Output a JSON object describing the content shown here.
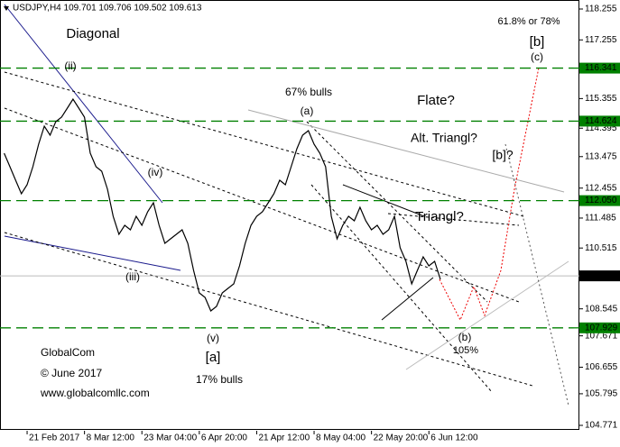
{
  "chart_data": {
    "type": "line",
    "title": "USDJPY,H4  109.701 109.706 109.502 109.613",
    "categories": [
      null,
      null,
      null,
      null,
      "21 Feb 2017",
      null,
      null,
      null,
      null,
      null,
      null,
      null,
      null,
      null,
      "8 Mar 12:00",
      null,
      null,
      null,
      null,
      null,
      null,
      null,
      null,
      null,
      "23 Mar 04:00",
      null,
      null,
      null,
      null,
      null,
      null,
      null,
      null,
      null,
      "6 Apr 20:00",
      null,
      null,
      null,
      null,
      null,
      null,
      null,
      null,
      null,
      "21 Apr 12:00",
      null,
      null,
      null,
      null,
      null,
      null,
      null,
      null,
      null,
      "8 May 04:00",
      null,
      null,
      null,
      null,
      null,
      null,
      null,
      null,
      null,
      "22 May 20:00",
      null,
      null,
      null,
      null,
      null,
      null,
      null,
      null,
      null,
      "6 Jun 12:00",
      null,
      null
    ],
    "values": [
      113.585,
      113.147,
      112.709,
      112.271,
      112.563,
      113.147,
      113.877,
      114.461,
      114.169,
      114.607,
      114.752,
      115.044,
      115.336,
      115.044,
      114.752,
      113.585,
      113.147,
      113.001,
      112.417,
      111.542,
      110.958,
      111.25,
      111.104,
      111.542,
      111.25,
      111.688,
      111.98,
      111.25,
      110.666,
      110.812,
      110.958,
      111.104,
      110.666,
      109.79,
      109.061,
      108.915,
      108.477,
      108.623,
      109.061,
      109.207,
      109.353,
      109.936,
      110.666,
      111.25,
      111.542,
      111.688,
      111.98,
      112.271,
      112.709,
      112.563,
      113.147,
      113.731,
      114.169,
      114.315,
      113.877,
      113.585,
      113.147,
      111.542,
      110.812,
      111.25,
      111.542,
      111.396,
      111.834,
      111.396,
      111.104,
      111.25,
      110.958,
      111.104,
      111.542,
      110.52,
      110.082,
      109.353,
      109.79,
      110.228,
      109.936,
      110.082,
      109.498
    ],
    "color": "#000000",
    "ylim": [
      104.596,
      118.547
    ],
    "yticks": [
      118.255,
      117.255,
      115.355,
      114.395,
      113.475,
      112.455,
      111.485,
      110.515,
      108.545,
      107.671,
      106.655,
      105.795,
      104.771
    ],
    "levels": [
      116.341,
      114.624,
      {
        "value": 112.05,
        "label": "112.050"
      },
      107.929
    ],
    "level_color": "#008000",
    "price_line": 109.613,
    "annotations": [
      {
        "text": "Diagonal",
        "color": "#1a1a8c"
      },
      {
        "text": "(ii)",
        "color": "#1a1a8c"
      },
      {
        "text": "(iv)",
        "color": "#1a1a8c"
      },
      {
        "text": "(iii)",
        "color": "#1a1a8c"
      },
      {
        "text": "(v)",
        "color": "#1a1a8c"
      },
      {
        "text": "[a]",
        "color": "#008000"
      },
      {
        "text": "17% bulls",
        "color": "#000000"
      },
      {
        "text": "GlobalCom",
        "color": "#000000"
      },
      {
        "text": "© June 2017",
        "color": "#000000"
      },
      {
        "text": "www.globalcomllc.com",
        "color": "#000000"
      },
      {
        "text": "67% bulls",
        "color": "#000000"
      },
      {
        "text": "(a)",
        "color": "#1a1a8c"
      },
      {
        "text": "Flate?",
        "color": "#1a1a8c"
      },
      {
        "text": "Alt. Triangl?",
        "color": "#999999"
      },
      {
        "text": "[b]?",
        "color": "#999999"
      },
      {
        "text": "Triangl?",
        "color": "#1a1a8c"
      },
      {
        "text": "(b)",
        "color": "#1a1a8c"
      },
      {
        "text": "105%",
        "color": "#1a1a8c"
      },
      {
        "text": "61.8% or 78%",
        "color": "#1a1a8c"
      },
      {
        "text": "[b]",
        "color": "#008000"
      },
      {
        "text": "(c)",
        "color": "#1a1a8c"
      }
    ]
  }
}
